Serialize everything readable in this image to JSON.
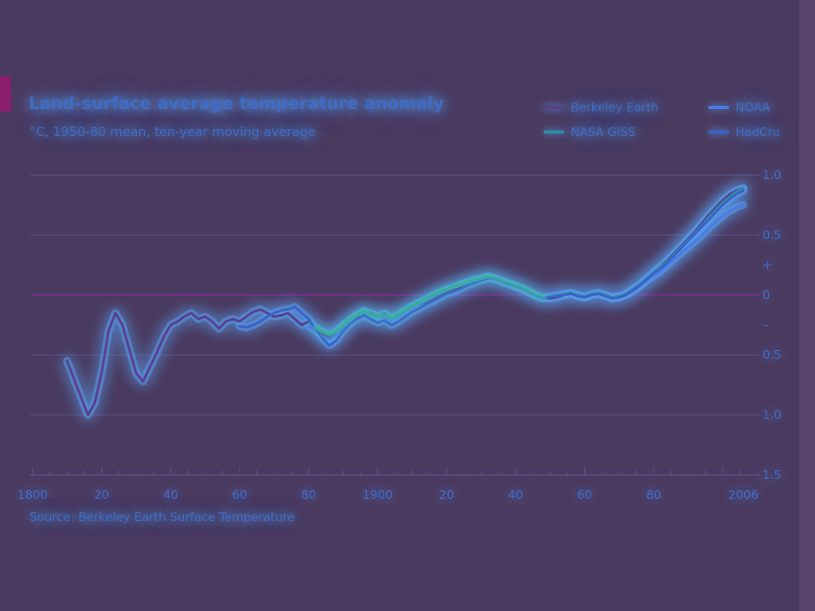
{
  "colors": {
    "background": "#4b3a5f",
    "gridline": "#5a4f86",
    "zero_line": "#7b2c8a",
    "text": "#3f6cc4",
    "glow": "#5aaaff",
    "tag": "#8b1e6e"
  },
  "chart_data": {
    "type": "line",
    "title": "Land-surface average temperature anomaly",
    "subtitle": "°C, 1950-80 mean, ten-year moving average",
    "source": "Source: Berkeley Earth Surface Temperature",
    "xlim": [
      1800,
      2010
    ],
    "ylim": [
      -1.5,
      1.0
    ],
    "x_ticks": [
      {
        "value": 1800,
        "label": "1800"
      },
      {
        "value": 1820,
        "label": "20"
      },
      {
        "value": 1840,
        "label": "40"
      },
      {
        "value": 1860,
        "label": "60"
      },
      {
        "value": 1880,
        "label": "80"
      },
      {
        "value": 1900,
        "label": "1900"
      },
      {
        "value": 1920,
        "label": "20"
      },
      {
        "value": 1940,
        "label": "40"
      },
      {
        "value": 1960,
        "label": "60"
      },
      {
        "value": 1980,
        "label": "80"
      },
      {
        "value": 2006,
        "label": "2006"
      }
    ],
    "y_ticks": [
      {
        "value": 1.0,
        "label": "1.0"
      },
      {
        "value": 0.5,
        "label": "0.5"
      },
      {
        "value": 0.25,
        "label": "+"
      },
      {
        "value": 0,
        "label": "0"
      },
      {
        "value": -0.25,
        "label": "–"
      },
      {
        "value": -0.5,
        "label": "0.5"
      },
      {
        "value": -1.0,
        "label": "1.0"
      },
      {
        "value": -1.5,
        "label": "1.5"
      }
    ],
    "grid": true,
    "legend_position": "top-right",
    "series": [
      {
        "name": "Berkeley Earth",
        "color": "#5a3f8e",
        "x": [
          1810,
          1812,
          1814,
          1816,
          1818,
          1820,
          1822,
          1824,
          1826,
          1828,
          1830,
          1832,
          1834,
          1836,
          1838,
          1840,
          1842,
          1844,
          1846,
          1848,
          1850,
          1852,
          1854,
          1856,
          1858,
          1860,
          1862,
          1864,
          1866,
          1868,
          1870,
          1872,
          1874,
          1876,
          1878,
          1880,
          1882,
          1884,
          1886,
          1888,
          1890,
          1892,
          1894,
          1896,
          1898,
          1900,
          1902,
          1904,
          1906,
          1908,
          1910,
          1912,
          1914,
          1916,
          1918,
          1920,
          1922,
          1924,
          1926,
          1928,
          1930,
          1932,
          1934,
          1936,
          1938,
          1940,
          1942,
          1944,
          1946,
          1948,
          1950,
          1952,
          1954,
          1956,
          1958,
          1960,
          1962,
          1964,
          1966,
          1968,
          1970,
          1972,
          1974,
          1976,
          1978,
          1980,
          1982,
          1984,
          1986,
          1988,
          1990,
          1992,
          1994,
          1996,
          1998,
          2000,
          2002,
          2004,
          2006
        ],
        "values": [
          -0.55,
          -0.7,
          -0.85,
          -1.0,
          -0.9,
          -0.65,
          -0.3,
          -0.15,
          -0.25,
          -0.45,
          -0.65,
          -0.72,
          -0.6,
          -0.48,
          -0.35,
          -0.25,
          -0.22,
          -0.18,
          -0.15,
          -0.2,
          -0.18,
          -0.22,
          -0.28,
          -0.22,
          -0.2,
          -0.22,
          -0.18,
          -0.14,
          -0.12,
          -0.15,
          -0.18,
          -0.17,
          -0.15,
          -0.2,
          -0.25,
          -0.22,
          -0.28,
          -0.32,
          -0.35,
          -0.3,
          -0.25,
          -0.22,
          -0.18,
          -0.14,
          -0.15,
          -0.18,
          -0.15,
          -0.2,
          -0.18,
          -0.14,
          -0.1,
          -0.08,
          -0.06,
          -0.03,
          0.0,
          0.03,
          0.05,
          0.07,
          0.1,
          0.12,
          0.13,
          0.15,
          0.14,
          0.12,
          0.1,
          0.07,
          0.05,
          0.03,
          0.0,
          -0.02,
          -0.03,
          -0.02,
          0.0,
          0.01,
          0.0,
          -0.02,
          0.0,
          0.01,
          0.0,
          -0.02,
          -0.01,
          0.01,
          0.05,
          0.09,
          0.14,
          0.19,
          0.24,
          0.29,
          0.35,
          0.41,
          0.47,
          0.53,
          0.6,
          0.67,
          0.73,
          0.79,
          0.84,
          0.87,
          0.89
        ]
      },
      {
        "name": "NOAA",
        "color": "#4a7ae6",
        "x": [
          1880,
          1882,
          1884,
          1886,
          1888,
          1890,
          1892,
          1894,
          1896,
          1898,
          1900,
          1902,
          1904,
          1906,
          1908,
          1910,
          1912,
          1914,
          1916,
          1918,
          1920,
          1922,
          1924,
          1926,
          1928,
          1930,
          1932,
          1934,
          1936,
          1938,
          1940,
          1942,
          1944,
          1946,
          1948,
          1950,
          1952,
          1954,
          1956,
          1958,
          1960,
          1962,
          1964,
          1966,
          1968,
          1970,
          1972,
          1974,
          1976,
          1978,
          1980,
          1982,
          1984,
          1986,
          1988,
          1990,
          1992,
          1994,
          1996,
          1998,
          2000,
          2002,
          2004,
          2006
        ],
        "values": [
          -0.26,
          -0.3,
          -0.34,
          -0.37,
          -0.33,
          -0.27,
          -0.22,
          -0.17,
          -0.15,
          -0.17,
          -0.19,
          -0.18,
          -0.21,
          -0.18,
          -0.14,
          -0.11,
          -0.08,
          -0.05,
          -0.02,
          0.01,
          0.04,
          0.06,
          0.08,
          0.1,
          0.12,
          0.13,
          0.15,
          0.13,
          0.11,
          0.09,
          0.07,
          0.05,
          0.02,
          -0.01,
          -0.03,
          -0.02,
          -0.01,
          0.0,
          0.01,
          -0.01,
          -0.02,
          0.0,
          0.01,
          -0.01,
          -0.03,
          -0.02,
          0.0,
          0.03,
          0.07,
          0.12,
          0.16,
          0.2,
          0.25,
          0.3,
          0.35,
          0.4,
          0.45,
          0.5,
          0.56,
          0.61,
          0.66,
          0.7,
          0.73,
          0.75
        ]
      },
      {
        "name": "NASA GISS",
        "color": "#2f8ea0",
        "x": [
          1880,
          1882,
          1884,
          1886,
          1888,
          1890,
          1892,
          1894,
          1896,
          1898,
          1900,
          1902,
          1904,
          1906,
          1908,
          1910,
          1912,
          1914,
          1916,
          1918,
          1920,
          1922,
          1924,
          1926,
          1928,
          1930,
          1932,
          1934,
          1936,
          1938,
          1940,
          1942,
          1944,
          1946,
          1948,
          1950,
          1952,
          1954,
          1956,
          1958,
          1960,
          1962,
          1964,
          1966,
          1968,
          1970,
          1972,
          1974,
          1976,
          1978,
          1980,
          1982,
          1984,
          1986,
          1988,
          1990,
          1992,
          1994,
          1996,
          1998,
          2000,
          2002,
          2004,
          2006
        ],
        "values": [
          -0.23,
          -0.27,
          -0.3,
          -0.33,
          -0.3,
          -0.25,
          -0.2,
          -0.16,
          -0.13,
          -0.16,
          -0.18,
          -0.16,
          -0.19,
          -0.16,
          -0.12,
          -0.09,
          -0.06,
          -0.03,
          0.0,
          0.03,
          0.05,
          0.07,
          0.09,
          0.11,
          0.13,
          0.14,
          0.16,
          0.14,
          0.12,
          0.1,
          0.08,
          0.06,
          0.03,
          0.0,
          -0.02,
          -0.01,
          0.0,
          0.01,
          0.02,
          0.0,
          -0.01,
          0.01,
          0.02,
          0.0,
          -0.02,
          -0.01,
          0.01,
          0.05,
          0.09,
          0.14,
          0.19,
          0.24,
          0.28,
          0.34,
          0.4,
          0.46,
          0.52,
          0.58,
          0.65,
          0.71,
          0.77,
          0.82,
          0.86,
          0.89
        ]
      },
      {
        "name": "HadCru",
        "color": "#3a62c8",
        "x": [
          1860,
          1862,
          1864,
          1866,
          1868,
          1870,
          1872,
          1874,
          1876,
          1878,
          1880,
          1882,
          1884,
          1886,
          1888,
          1890,
          1892,
          1894,
          1896,
          1898,
          1900,
          1902,
          1904,
          1906,
          1908,
          1910,
          1912,
          1914,
          1916,
          1918,
          1920,
          1922,
          1924,
          1926,
          1928,
          1930,
          1932,
          1934,
          1936,
          1938,
          1940,
          1942,
          1944,
          1946,
          1948,
          1950,
          1952,
          1954,
          1956,
          1958,
          1960,
          1962,
          1964,
          1966,
          1968,
          1970,
          1972,
          1974,
          1976,
          1978,
          1980,
          1982,
          1984,
          1986,
          1988,
          1990,
          1992,
          1994,
          1996,
          1998,
          2000,
          2002,
          2004,
          2006
        ],
        "values": [
          -0.26,
          -0.27,
          -0.25,
          -0.22,
          -0.18,
          -0.15,
          -0.13,
          -0.12,
          -0.1,
          -0.15,
          -0.2,
          -0.28,
          -0.36,
          -0.42,
          -0.38,
          -0.3,
          -0.24,
          -0.2,
          -0.17,
          -0.2,
          -0.23,
          -0.21,
          -0.25,
          -0.22,
          -0.18,
          -0.14,
          -0.11,
          -0.08,
          -0.05,
          -0.02,
          0.01,
          0.03,
          0.05,
          0.08,
          0.1,
          0.12,
          0.14,
          0.13,
          0.11,
          0.09,
          0.07,
          0.05,
          0.02,
          -0.01,
          -0.03,
          -0.02,
          -0.01,
          0.0,
          0.01,
          -0.01,
          -0.02,
          0.0,
          0.01,
          -0.01,
          -0.03,
          -0.02,
          0.0,
          0.04,
          0.08,
          0.13,
          0.18,
          0.22,
          0.27,
          0.33,
          0.39,
          0.45,
          0.51,
          0.57,
          0.63,
          0.69,
          0.75,
          0.8,
          0.84,
          0.87
        ]
      }
    ]
  }
}
